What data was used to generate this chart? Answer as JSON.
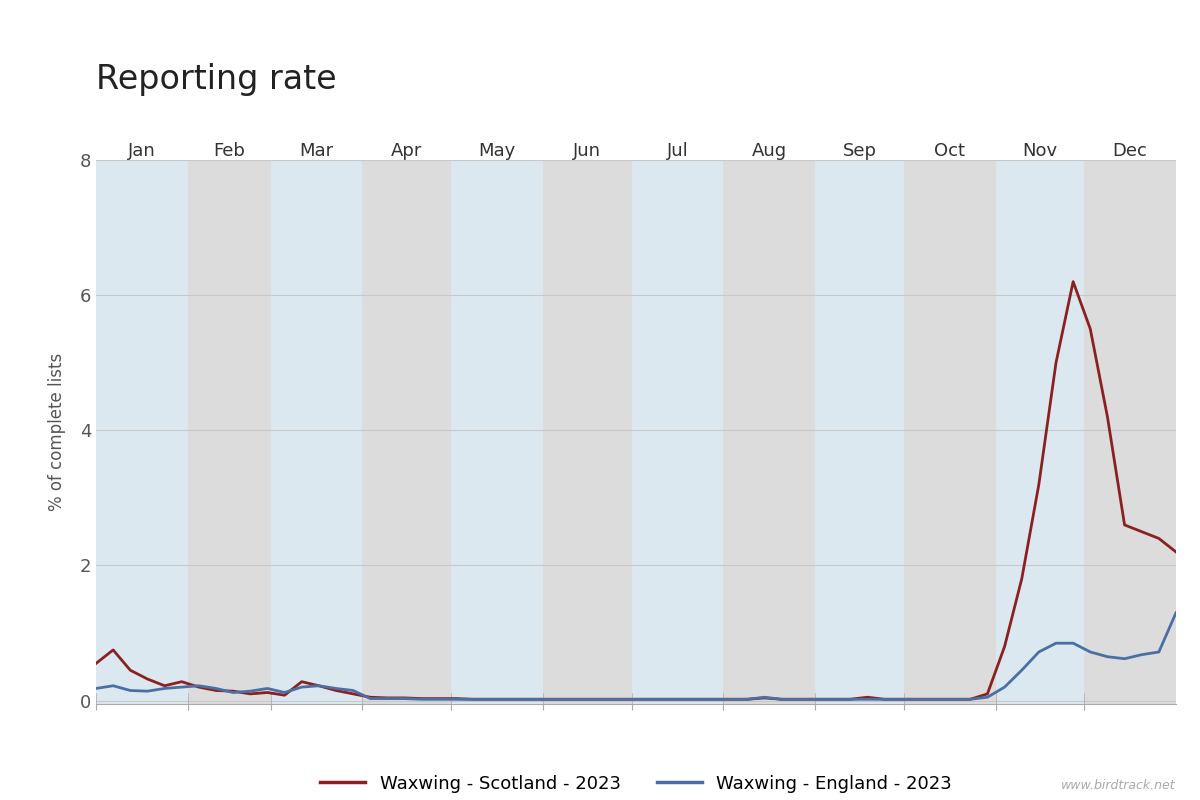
{
  "title": "Reporting rate",
  "ylabel": "% of complete lists",
  "ylim": [
    -0.05,
    8
  ],
  "yticks": [
    0,
    2,
    4,
    6,
    8
  ],
  "background_color": "#ffffff",
  "plot_bg_odd": "#dcdcdc",
  "plot_bg_even": "#dce8f0",
  "months": [
    "Jan",
    "Feb",
    "Mar",
    "Apr",
    "May",
    "Jun",
    "Jul",
    "Aug",
    "Sep",
    "Oct",
    "Nov",
    "Dec"
  ],
  "scotland_color": "#8b2020",
  "england_color": "#4a6fa5",
  "legend_scotland": "Waxwing - Scotland - 2023",
  "legend_england": "Waxwing - England - 2023",
  "watermark": "www.birdtrack.net",
  "scotland_data": [
    0.55,
    0.75,
    0.45,
    0.32,
    0.22,
    0.28,
    0.2,
    0.15,
    0.14,
    0.1,
    0.12,
    0.08,
    0.28,
    0.22,
    0.15,
    0.1,
    0.05,
    0.04,
    0.04,
    0.03,
    0.03,
    0.03,
    0.02,
    0.02,
    0.02,
    0.02,
    0.02,
    0.02,
    0.02,
    0.02,
    0.02,
    0.02,
    0.02,
    0.02,
    0.02,
    0.02,
    0.02,
    0.02,
    0.02,
    0.04,
    0.02,
    0.02,
    0.02,
    0.02,
    0.02,
    0.05,
    0.02,
    0.02,
    0.02,
    0.02,
    0.02,
    0.02,
    0.1,
    0.8,
    1.8,
    3.2,
    5.0,
    6.2,
    5.5,
    4.2,
    2.6,
    2.5,
    2.4,
    2.2
  ],
  "england_data": [
    0.18,
    0.22,
    0.15,
    0.14,
    0.18,
    0.2,
    0.22,
    0.18,
    0.12,
    0.14,
    0.18,
    0.12,
    0.2,
    0.22,
    0.18,
    0.15,
    0.03,
    0.03,
    0.03,
    0.02,
    0.02,
    0.02,
    0.02,
    0.02,
    0.02,
    0.02,
    0.02,
    0.02,
    0.02,
    0.02,
    0.02,
    0.02,
    0.02,
    0.02,
    0.02,
    0.02,
    0.02,
    0.02,
    0.02,
    0.05,
    0.02,
    0.02,
    0.02,
    0.02,
    0.02,
    0.02,
    0.02,
    0.02,
    0.02,
    0.02,
    0.02,
    0.02,
    0.05,
    0.2,
    0.45,
    0.72,
    0.85,
    0.85,
    0.72,
    0.65,
    0.62,
    0.68,
    0.72,
    1.3
  ]
}
